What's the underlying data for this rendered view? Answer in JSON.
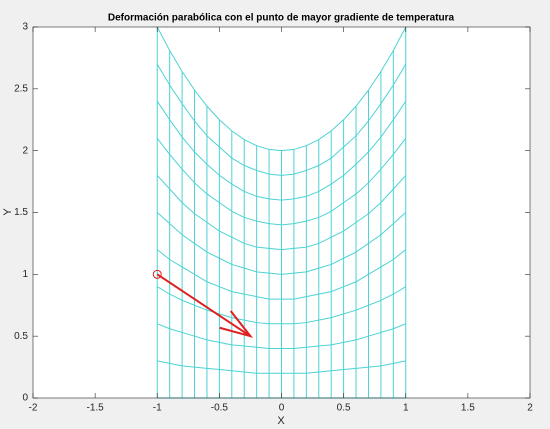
{
  "chart_data": {
    "type": "mesh",
    "title": "Deformación parabólica con el punto de mayor gradiente de temperatura",
    "xlabel": "X",
    "ylabel": "Y",
    "xlim": [
      -2,
      2
    ],
    "ylim": [
      0,
      3
    ],
    "xticks": [
      -2,
      -1.5,
      -1,
      -0.5,
      0,
      0.5,
      1,
      1.5,
      2
    ],
    "yticks": [
      0,
      0.5,
      1,
      1.5,
      2,
      2.5,
      3
    ],
    "mesh": {
      "color": "#4dd2d2",
      "x": [
        -1,
        -0.9,
        -0.8,
        -0.7,
        -0.6,
        -0.5,
        -0.4,
        -0.3,
        -0.2,
        -0.1,
        0,
        0.1,
        0.2,
        0.3,
        0.4,
        0.5,
        0.6,
        0.7,
        0.8,
        0.9,
        1
      ],
      "rows": [
        [
          0,
          0,
          0,
          0,
          0,
          0,
          0,
          0,
          0,
          0,
          0,
          0,
          0,
          0,
          0,
          0,
          0,
          0,
          0,
          0,
          0
        ],
        [
          0.3,
          0.28,
          0.26,
          0.25,
          0.24,
          0.23,
          0.22,
          0.21,
          0.2,
          0.2,
          0.2,
          0.2,
          0.2,
          0.21,
          0.22,
          0.23,
          0.24,
          0.25,
          0.26,
          0.28,
          0.3
        ],
        [
          0.6,
          0.56,
          0.53,
          0.5,
          0.47,
          0.45,
          0.43,
          0.42,
          0.41,
          0.4,
          0.4,
          0.4,
          0.41,
          0.42,
          0.43,
          0.45,
          0.47,
          0.5,
          0.53,
          0.56,
          0.6
        ],
        [
          0.9,
          0.84,
          0.79,
          0.75,
          0.71,
          0.68,
          0.65,
          0.63,
          0.61,
          0.6,
          0.6,
          0.6,
          0.61,
          0.63,
          0.65,
          0.68,
          0.71,
          0.75,
          0.79,
          0.84,
          0.9
        ],
        [
          1.2,
          1.12,
          1.06,
          1,
          0.94,
          0.9,
          0.86,
          0.84,
          0.82,
          0.8,
          0.8,
          0.8,
          0.82,
          0.84,
          0.86,
          0.9,
          0.94,
          1,
          1.06,
          1.12,
          1.2
        ],
        [
          1.5,
          1.41,
          1.32,
          1.25,
          1.18,
          1.13,
          1.08,
          1.05,
          1.02,
          1.01,
          1,
          1.01,
          1.02,
          1.05,
          1.08,
          1.13,
          1.18,
          1.25,
          1.32,
          1.41,
          1.5
        ],
        [
          1.8,
          1.69,
          1.58,
          1.49,
          1.42,
          1.35,
          1.3,
          1.25,
          1.22,
          1.21,
          1.2,
          1.21,
          1.22,
          1.25,
          1.3,
          1.35,
          1.42,
          1.49,
          1.58,
          1.69,
          1.8
        ],
        [
          2.1,
          1.97,
          1.85,
          1.74,
          1.65,
          1.58,
          1.51,
          1.46,
          1.43,
          1.41,
          1.4,
          1.41,
          1.43,
          1.46,
          1.51,
          1.58,
          1.65,
          1.74,
          1.85,
          1.97,
          2.1
        ],
        [
          2.4,
          2.25,
          2.11,
          1.99,
          1.89,
          1.8,
          1.73,
          1.67,
          1.63,
          1.61,
          1.6,
          1.61,
          1.63,
          1.67,
          1.73,
          1.8,
          1.89,
          1.99,
          2.11,
          2.25,
          2.4
        ],
        [
          2.7,
          2.53,
          2.38,
          2.24,
          2.12,
          2.03,
          1.94,
          1.88,
          1.84,
          1.81,
          1.8,
          1.81,
          1.84,
          1.88,
          1.94,
          2.03,
          2.12,
          2.24,
          2.38,
          2.53,
          2.7
        ],
        [
          3,
          2.81,
          2.64,
          2.49,
          2.36,
          2.25,
          2.16,
          2.09,
          2.04,
          2.01,
          2,
          2.01,
          2.04,
          2.09,
          2.16,
          2.25,
          2.36,
          2.49,
          2.64,
          2.81,
          3
        ]
      ]
    },
    "arrow": {
      "x": -1,
      "y": 1,
      "u": 0.75,
      "v": -0.5,
      "color": "#e02020"
    }
  }
}
